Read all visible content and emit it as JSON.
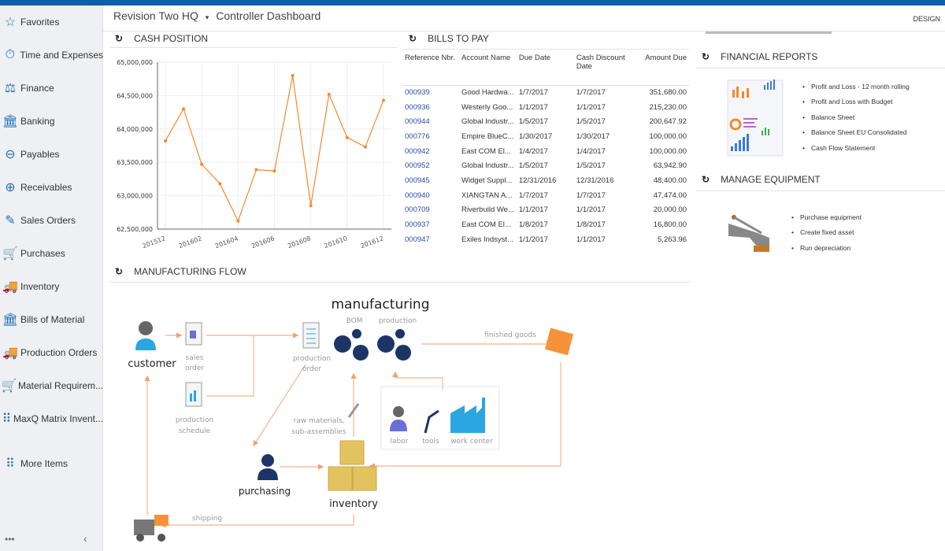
{
  "header": {
    "company": "Revision Two HQ",
    "separator": "▾",
    "title": "Controller Dashboard",
    "design": "DESIGN"
  },
  "sidebar": {
    "items": [
      {
        "label": "Favorites",
        "icon": "star-icon"
      },
      {
        "label": "Time and Expenses",
        "icon": "stopwatch-icon"
      },
      {
        "label": "Finance",
        "icon": "scales-icon"
      },
      {
        "label": "Banking",
        "icon": "bank-icon"
      },
      {
        "label": "Payables",
        "icon": "minus-circle-icon"
      },
      {
        "label": "Receivables",
        "icon": "plus-circle-icon"
      },
      {
        "label": "Sales Orders",
        "icon": "edit-icon"
      },
      {
        "label": "Purchases",
        "icon": "cart-icon"
      },
      {
        "label": "Inventory",
        "icon": "truck-icon"
      },
      {
        "label": "Bills of Material",
        "icon": "bank-icon"
      },
      {
        "label": "Production Orders",
        "icon": "truck-icon"
      },
      {
        "label": "Material Requirem...",
        "icon": "cart-plus-icon"
      },
      {
        "label": "MaxQ Matrix Invent...",
        "icon": "grid-icon"
      },
      {
        "label": "More Items",
        "icon": "grid-icon"
      }
    ],
    "more": "•••",
    "collapse": "‹"
  },
  "cash": {
    "title": "CASH POSITION"
  },
  "chart_data": {
    "type": "line",
    "title": "",
    "x": [
      "201512",
      "201601",
      "201602",
      "201603",
      "201604",
      "201605",
      "201606",
      "201607",
      "201608",
      "201609",
      "201610",
      "201611",
      "201612"
    ],
    "xticks": [
      "201512",
      "201602",
      "201604",
      "201606",
      "201608",
      "201610",
      "201612"
    ],
    "values": [
      63820000,
      64300000,
      63470000,
      63180000,
      62620000,
      63390000,
      63370000,
      64800000,
      62850000,
      64520000,
      63870000,
      63730000,
      64430000
    ],
    "yticks": [
      "62,500,000",
      "63,000,000",
      "63,500,000",
      "64,000,000",
      "64,500,000",
      "65,000,000"
    ],
    "ylim": [
      62500000,
      65000000
    ],
    "grid": true,
    "color": "#f28a2e"
  },
  "bills": {
    "title": "BILLS TO PAY",
    "columns": [
      "Reference Nbr.",
      "Account Name",
      "Due Date",
      "Cash Discount Date",
      "Amount Due"
    ],
    "rows": [
      [
        "000939",
        "Good Hardwa...",
        "1/7/2017",
        "1/7/2017",
        "351,680.00"
      ],
      [
        "000936",
        "Westerly Goo...",
        "1/1/2017",
        "1/1/2017",
        "215,230.00"
      ],
      [
        "000944",
        "Global Industr...",
        "1/5/2017",
        "1/5/2017",
        "200,647.92"
      ],
      [
        "000776",
        "Empire BlueC...",
        "1/30/2017",
        "1/30/2017",
        "100,000.00"
      ],
      [
        "000942",
        "East COM El...",
        "1/4/2017",
        "1/4/2017",
        "100,000.00"
      ],
      [
        "000952",
        "Global Industr...",
        "1/5/2017",
        "1/5/2017",
        "63,942.90"
      ],
      [
        "000945",
        "Widget Suppl...",
        "12/31/2016",
        "12/31/2016",
        "48,400.00"
      ],
      [
        "000940",
        "XIANGTAN A...",
        "1/7/2017",
        "1/7/2017",
        "47,474.00"
      ],
      [
        "000709",
        "Riverbuild We...",
        "1/1/2017",
        "1/1/2017",
        "20,000.00"
      ],
      [
        "000937",
        "East COM El...",
        "1/8/2017",
        "1/8/2017",
        "16,800.00"
      ],
      [
        "000947",
        "Exiles Indsyst...",
        "1/1/2017",
        "1/1/2017",
        "5,263.96"
      ]
    ]
  },
  "reports": {
    "title": "FINANCIAL REPORTS",
    "items": [
      "Profit and Loss - 12 month rolling",
      "Profit and Loss with Budget",
      "Balance Sheet",
      "Balance Sheet EU Consolidated",
      "Cash Flow Statement"
    ]
  },
  "equipment": {
    "title": "MANAGE EQUIPMENT",
    "items": [
      "Purchase equipment",
      "Create fixed asset",
      "Run depreciation"
    ]
  },
  "flow": {
    "title": "MANUFACTURING FLOW",
    "manufacturing": "manufacturing",
    "bom": "BOM",
    "production": "production",
    "customer": "customer",
    "sales_order": [
      "sales",
      "order"
    ],
    "production_schedule": [
      "production",
      "schedule"
    ],
    "production_order": [
      "production",
      "order"
    ],
    "finished_goods": "finished goods",
    "raw_materials": [
      "raw materials,",
      "sub-assemblies"
    ],
    "labor": "labor",
    "tools": "tools",
    "work_center": "work center",
    "purchasing": "purchasing",
    "inventory": "inventory",
    "shipping": "shipping"
  }
}
